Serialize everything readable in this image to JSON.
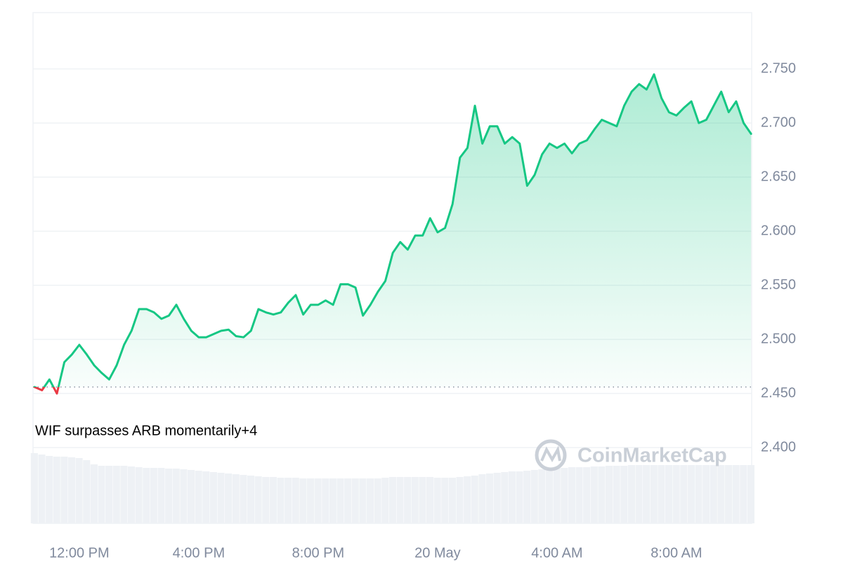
{
  "chart_data": {
    "type": "line",
    "x": [
      10.5,
      10.75,
      11,
      11.25,
      11.5,
      11.75,
      12,
      12.25,
      12.5,
      12.75,
      13,
      13.25,
      13.5,
      13.75,
      14,
      14.25,
      14.5,
      14.75,
      15,
      15.25,
      15.5,
      15.75,
      16,
      16.25,
      16.5,
      16.75,
      17,
      17.25,
      17.5,
      17.75,
      18,
      18.25,
      18.5,
      18.75,
      19,
      19.25,
      19.5,
      19.75,
      20,
      20.25,
      20.5,
      20.75,
      21,
      21.25,
      21.5,
      21.75,
      22,
      22.25,
      22.5,
      22.75,
      23,
      23.25,
      23.5,
      23.75,
      24,
      24.25,
      24.5,
      24.75,
      25,
      25.25,
      25.5,
      25.75,
      26,
      26.25,
      26.5,
      26.75,
      27,
      27.25,
      27.5,
      27.75,
      28,
      28.25,
      28.5,
      28.75,
      29,
      29.25,
      29.5,
      29.75,
      30,
      30.25,
      30.5,
      30.75,
      31,
      31.25,
      31.5,
      31.75,
      32,
      32.25,
      32.5,
      32.75,
      33,
      33.25,
      33.5,
      33.75,
      34,
      34.25,
      34.5
    ],
    "values": [
      2.456,
      2.453,
      2.463,
      2.45,
      2.479,
      2.486,
      2.495,
      2.486,
      2.476,
      2.469,
      2.463,
      2.476,
      2.495,
      2.508,
      2.528,
      2.528,
      2.525,
      2.519,
      2.522,
      2.532,
      2.519,
      2.508,
      2.502,
      2.502,
      2.505,
      2.508,
      2.509,
      2.503,
      2.502,
      2.508,
      2.528,
      2.525,
      2.523,
      2.525,
      2.534,
      2.541,
      2.523,
      2.532,
      2.532,
      2.536,
      2.532,
      2.551,
      2.551,
      2.548,
      2.522,
      2.532,
      2.544,
      2.554,
      2.58,
      2.59,
      2.583,
      2.596,
      2.596,
      2.612,
      2.599,
      2.603,
      2.625,
      2.668,
      2.677,
      2.716,
      2.681,
      2.697,
      2.697,
      2.681,
      2.687,
      2.681,
      2.642,
      2.652,
      2.671,
      2.681,
      2.677,
      2.681,
      2.672,
      2.681,
      2.684,
      2.694,
      2.703,
      2.7,
      2.697,
      2.716,
      2.729,
      2.736,
      2.731,
      2.745,
      2.723,
      2.71,
      2.707,
      2.714,
      2.72,
      2.7,
      2.703,
      2.716,
      2.729,
      2.71,
      2.72,
      2.7,
      2.69
    ],
    "color": "#16c784",
    "down_color": "#ea3943",
    "baseline": 2.456,
    "volume": {
      "color": "#eef1f5",
      "values": [
        100,
        98,
        96,
        95,
        95,
        94,
        93,
        90,
        84,
        82,
        82,
        82,
        82,
        81,
        80,
        79,
        79,
        79,
        78,
        78,
        77,
        76,
        75,
        74,
        73,
        72,
        71,
        70,
        69,
        68,
        67,
        66,
        66,
        65,
        65,
        65,
        64,
        64,
        64,
        64,
        64,
        64,
        64,
        64,
        64,
        64,
        64,
        65,
        66,
        66,
        66,
        66,
        66,
        66,
        65,
        65,
        65,
        66,
        67,
        68,
        70,
        71,
        72,
        73,
        74,
        74,
        75,
        76,
        77,
        78,
        79,
        79,
        80,
        80,
        80,
        81,
        81,
        82,
        82,
        82,
        83,
        83,
        83,
        83,
        83,
        83,
        83,
        83,
        83,
        83,
        83,
        83,
        83,
        83,
        83,
        83,
        83
      ]
    },
    "xlim": [
      10.45,
      34.52
    ],
    "xticks": [
      {
        "value": 12,
        "label": "12:00 PM"
      },
      {
        "value": 16,
        "label": "4:00 PM"
      },
      {
        "value": 20,
        "label": "8:00 PM"
      },
      {
        "value": 24,
        "label": "20 May"
      },
      {
        "value": 28,
        "label": "4:00 AM"
      },
      {
        "value": 32,
        "label": "8:00 AM"
      }
    ],
    "ylim": [
      2.33,
      2.802
    ],
    "yticks": [
      {
        "value": 2.4,
        "label": "2.400"
      },
      {
        "value": 2.45,
        "label": "2.450"
      },
      {
        "value": 2.5,
        "label": "2.500"
      },
      {
        "value": 2.55,
        "label": "2.550"
      },
      {
        "value": 2.6,
        "label": "2.600"
      },
      {
        "value": 2.65,
        "label": "2.650"
      },
      {
        "value": 2.7,
        "label": "2.700"
      },
      {
        "value": 2.75,
        "label": "2.750"
      }
    ],
    "grid": true,
    "annotation": "WIF surpasses ARB momentarily+4",
    "watermark": "CoinMarketCap"
  }
}
